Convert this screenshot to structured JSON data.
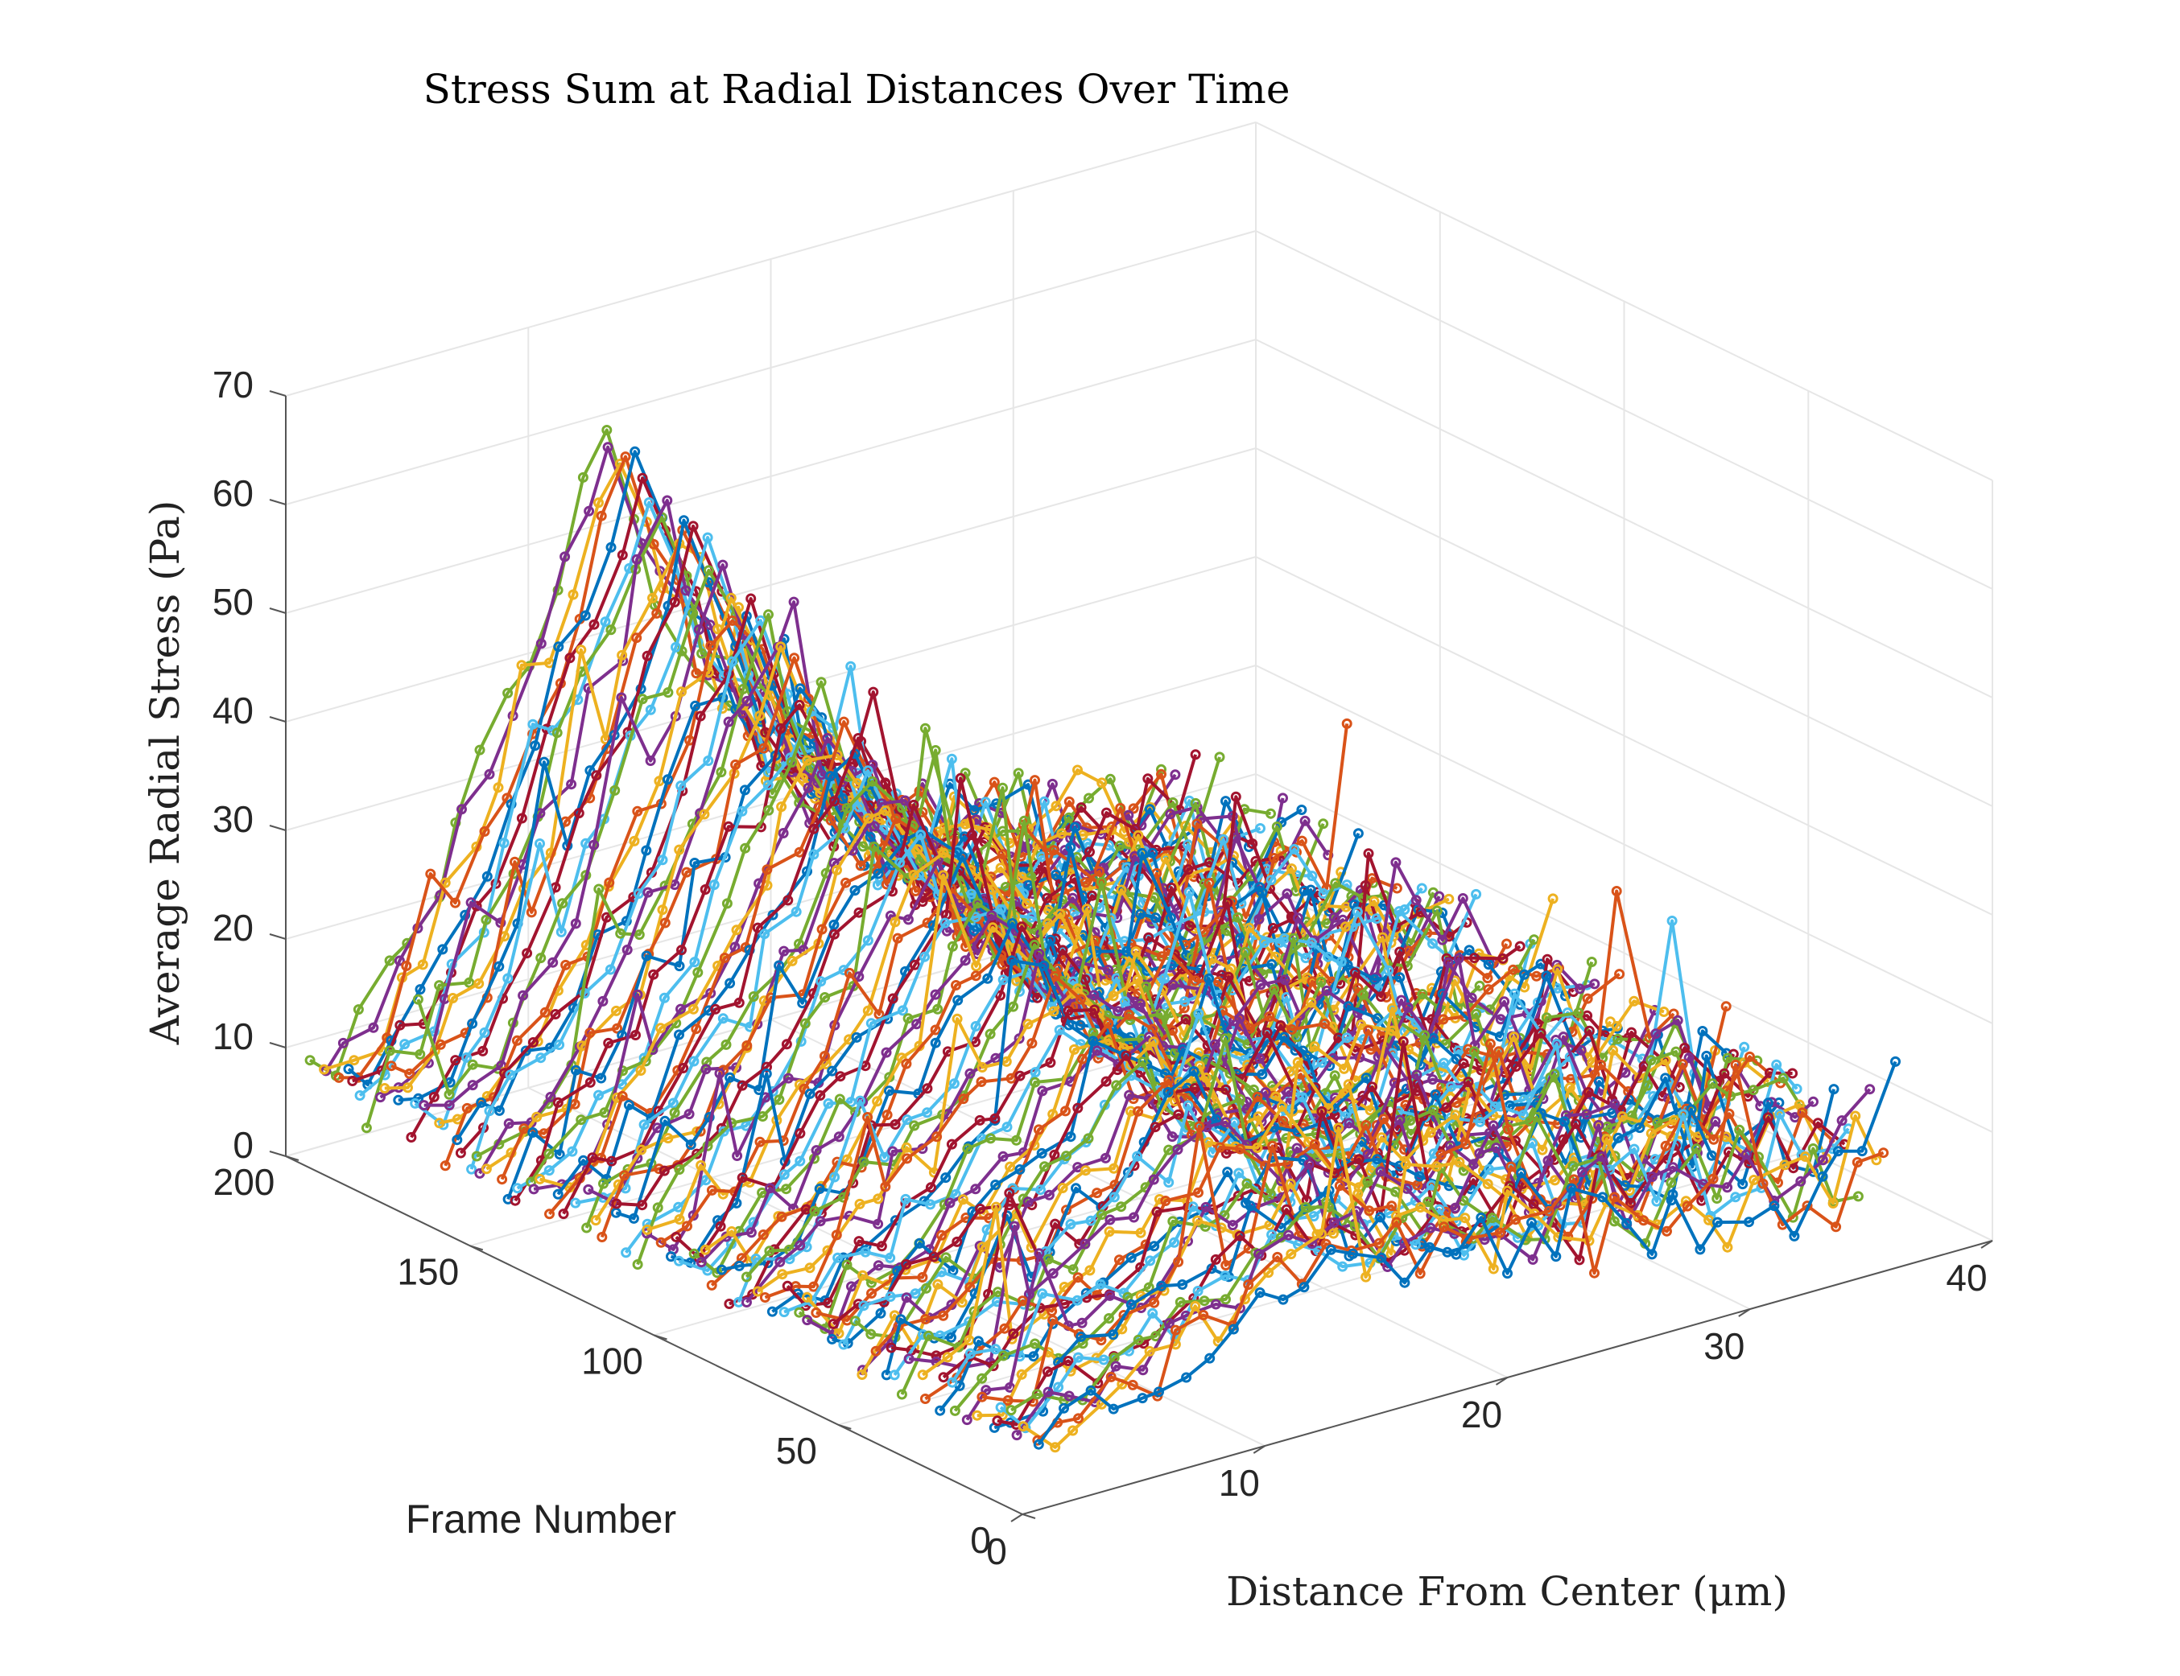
{
  "chart_data": {
    "type": "line",
    "subtype": "3d-waterfall",
    "title": "Stress Sum at Radial Distances Over Time",
    "xlabel": "Distance From Center (μm)",
    "ylabel": "Frame Number",
    "zlabel": "Average Radial Stress (Pa)",
    "xlim": [
      0,
      40
    ],
    "ylim": [
      0,
      200
    ],
    "zlim": [
      0,
      70
    ],
    "xticks": [
      "0",
      "10",
      "20",
      "30",
      "40"
    ],
    "yticks": [
      "0",
      "50",
      "100",
      "150",
      "200"
    ],
    "zticks": [
      "0",
      "10",
      "20",
      "30",
      "40",
      "50",
      "60",
      "70"
    ],
    "grid": true,
    "marker": "circle",
    "series_count_estimate": 200,
    "distance_samples": [
      1,
      2,
      3,
      4,
      5,
      6,
      7,
      8,
      9,
      10,
      11,
      12,
      13,
      14,
      15,
      16,
      17,
      18,
      19,
      20,
      21,
      22,
      23,
      24,
      25,
      26,
      27,
      28,
      29,
      30,
      31,
      32,
      33,
      34,
      35,
      36
    ],
    "trend": {
      "peak_distance": 13,
      "peak_stress_late_frames": 60,
      "peak_stress_early_frames": 16,
      "baseline_near_center": 6,
      "far_edge_stress_range": [
        6,
        20
      ]
    },
    "colors": [
      "#0072BD",
      "#D95319",
      "#EDB120",
      "#7E2F8E",
      "#77AC30",
      "#4DBEEE",
      "#A2142F"
    ]
  }
}
